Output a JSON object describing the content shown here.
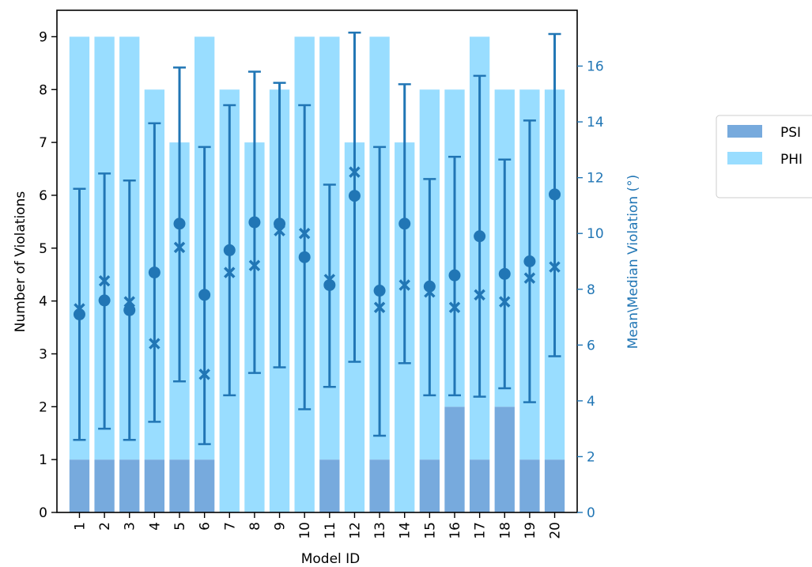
{
  "chart_data": {
    "type": "bar",
    "categories": [
      "1",
      "2",
      "3",
      "4",
      "5",
      "6",
      "7",
      "8",
      "9",
      "10",
      "11",
      "12",
      "13",
      "14",
      "15",
      "16",
      "17",
      "18",
      "19",
      "20"
    ],
    "xlabel": "Model ID",
    "ylabel": "Number of Violations",
    "y2label": "Mean\\Median Violation (°)",
    "ylim": [
      0,
      9.5
    ],
    "y2lim": [
      0,
      18
    ],
    "yticks": [
      0,
      1,
      2,
      3,
      4,
      5,
      6,
      7,
      8,
      9
    ],
    "y2ticks": [
      0,
      2,
      4,
      6,
      8,
      10,
      12,
      14,
      16
    ],
    "stacked": true,
    "series": [
      {
        "name": "PSI",
        "color": "#77aadd",
        "values": [
          1,
          1,
          1,
          1,
          1,
          1,
          0,
          0,
          0,
          0,
          1,
          0,
          1,
          0,
          1,
          2,
          1,
          2,
          1,
          1
        ]
      },
      {
        "name": "PHI",
        "color": "#99ddff",
        "values": [
          8,
          8,
          8,
          7,
          6,
          8,
          8,
          7,
          8,
          9,
          8,
          7,
          8,
          7,
          7,
          6,
          8,
          6,
          7,
          7
        ]
      }
    ],
    "error_series": {
      "axis": "right",
      "color": "#2176b5",
      "mean": [
        7.1,
        7.6,
        7.25,
        8.6,
        10.35,
        7.8,
        9.4,
        10.4,
        10.35,
        9.15,
        8.15,
        11.35,
        7.95,
        10.35,
        8.1,
        8.5,
        9.9,
        8.55,
        9.0,
        11.4
      ],
      "median": [
        7.3,
        8.3,
        7.55,
        6.05,
        9.5,
        4.95,
        8.6,
        8.85,
        10.1,
        10.0,
        8.35,
        12.2,
        7.35,
        8.15,
        7.9,
        7.35,
        7.8,
        7.55,
        8.4,
        8.8
      ],
      "err_low": [
        2.6,
        3.0,
        2.6,
        3.25,
        4.7,
        2.45,
        4.2,
        5.0,
        5.2,
        3.7,
        4.5,
        5.4,
        2.75,
        5.35,
        4.2,
        4.2,
        4.15,
        4.45,
        3.95,
        5.6
      ],
      "err_high": [
        11.6,
        12.15,
        11.9,
        13.95,
        15.95,
        13.1,
        14.6,
        15.8,
        15.4,
        14.6,
        11.75,
        17.2,
        13.1,
        15.35,
        11.95,
        12.75,
        15.65,
        12.65,
        14.05,
        17.15
      ]
    },
    "legend": {
      "placement": "right",
      "entries": [
        "PSI",
        "PHI"
      ]
    },
    "grid": false
  }
}
